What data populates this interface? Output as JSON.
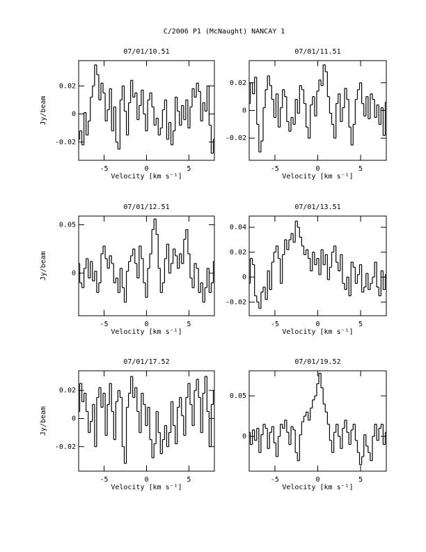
{
  "title": "C/2006 P1 (McNaught)   NANCAY     1",
  "chart_data": [
    {
      "type": "step",
      "title": "07/01/10.51",
      "xlabel": "Velocity [km s⁻¹]",
      "ylabel": "Jy/beam",
      "color": "#000000",
      "x": [
        -8,
        -7.75,
        -7.5,
        -7.25,
        -7,
        -6.75,
        -6.5,
        -6.25,
        -6,
        -5.75,
        -5.5,
        -5.25,
        -5,
        -4.75,
        -4.5,
        -4.25,
        -4,
        -3.75,
        -3.5,
        -3.25,
        -3,
        -2.75,
        -2.5,
        -2.25,
        -2,
        -1.75,
        -1.5,
        -1.25,
        -1,
        -0.75,
        -0.5,
        -0.25,
        0,
        0.25,
        0.5,
        0.75,
        1,
        1.25,
        1.5,
        1.75,
        2,
        2.25,
        2.5,
        2.75,
        3,
        3.25,
        3.5,
        3.75,
        4,
        4.25,
        4.5,
        4.75,
        5,
        5.25,
        5.5,
        5.75,
        6,
        6.25,
        6.5,
        6.75,
        7,
        7.25,
        7.5,
        7.75,
        8
      ],
      "values": [
        -0.018,
        -0.012,
        -0.022,
        0.001,
        -0.015,
        -0.005,
        0.012,
        0.02,
        0.035,
        0.028,
        0.01,
        0.022,
        0.015,
        -0.005,
        0.003,
        0.018,
        -0.012,
        0.005,
        -0.02,
        -0.025,
        0.01,
        0.02,
        0.002,
        -0.015,
        0.008,
        0.024,
        0.012,
        0.015,
        -0.004,
        0.006,
        0.017,
        0.0,
        -0.012,
        0.01,
        0.015,
        0.005,
        -0.008,
        -0.003,
        -0.015,
        -0.01,
        0.003,
        0.01,
        -0.018,
        -0.006,
        -0.022,
        -0.012,
        0.012,
        0.002,
        -0.008,
        0.006,
        -0.004,
        0.01,
        -0.01,
        0.005,
        0.018,
        0.012,
        0.022,
        0.016,
        -0.005,
        0.008,
        0.002,
        0.02,
        -0.008,
        -0.028,
        -0.018
      ],
      "xlim": [
        -8,
        8
      ],
      "xticks": [
        -5,
        0,
        5
      ],
      "ylim": [
        -0.033,
        0.038
      ],
      "yticks": [
        -0.02,
        0,
        0.02
      ]
    },
    {
      "type": "step",
      "title": "07/01/11.51",
      "xlabel": "Velocity [km s⁻¹]",
      "color": "#000000",
      "x": [
        -8,
        -7.75,
        -7.5,
        -7.25,
        -7,
        -6.75,
        -6.5,
        -6.25,
        -6,
        -5.75,
        -5.5,
        -5.25,
        -5,
        -4.75,
        -4.5,
        -4.25,
        -4,
        -3.75,
        -3.5,
        -3.25,
        -3,
        -2.75,
        -2.5,
        -2.25,
        -2,
        -1.75,
        -1.5,
        -1.25,
        -1,
        -0.75,
        -0.5,
        -0.25,
        0,
        0.25,
        0.5,
        0.75,
        1,
        1.25,
        1.5,
        1.75,
        2,
        2.25,
        2.5,
        2.75,
        3,
        3.25,
        3.5,
        3.75,
        4,
        4.25,
        4.5,
        4.75,
        5,
        5.25,
        5.5,
        5.75,
        6,
        6.25,
        6.5,
        6.75,
        7,
        7.25,
        7.5,
        7.75,
        8
      ],
      "values": [
        0.005,
        0.02,
        0.012,
        0.024,
        -0.01,
        -0.03,
        -0.022,
        0.002,
        0.015,
        0.025,
        0.018,
        0.008,
        -0.005,
        0.012,
        -0.012,
        0.002,
        0.015,
        0.01,
        -0.008,
        -0.015,
        -0.005,
        -0.01,
        0.008,
        -0.002,
        0.018,
        0.015,
        0.005,
        -0.012,
        -0.02,
        0.004,
        0.01,
        -0.004,
        0.014,
        0.022,
        0.018,
        0.033,
        0.028,
        0.01,
        -0.002,
        -0.01,
        -0.02,
        0.005,
        0.012,
        -0.008,
        0.002,
        0.016,
        0.008,
        -0.012,
        -0.025,
        -0.01,
        0.008,
        0.015,
        0.02,
        0.005,
        -0.004,
        0.01,
        -0.006,
        0.012,
        0.008,
        -0.005,
        0.004,
        -0.01,
        0.002,
        -0.018,
        0.006
      ],
      "xlim": [
        -8,
        8
      ],
      "xticks": [
        -5,
        0,
        5
      ],
      "ylim": [
        -0.036,
        0.036
      ],
      "yticks": [
        -0.02,
        0,
        0.02
      ]
    },
    {
      "type": "step",
      "title": "07/01/12.51",
      "xlabel": "Velocity [km s⁻¹]",
      "ylabel": "Jy/beam",
      "color": "#000000",
      "x": [
        -8,
        -7.75,
        -7.5,
        -7.25,
        -7,
        -6.75,
        -6.5,
        -6.25,
        -6,
        -5.75,
        -5.5,
        -5.25,
        -5,
        -4.75,
        -4.5,
        -4.25,
        -4,
        -3.75,
        -3.5,
        -3.25,
        -3,
        -2.75,
        -2.5,
        -2.25,
        -2,
        -1.75,
        -1.5,
        -1.25,
        -1,
        -0.75,
        -0.5,
        -0.25,
        0,
        0.25,
        0.5,
        0.75,
        1,
        1.25,
        1.5,
        1.75,
        2,
        2.25,
        2.5,
        2.75,
        3,
        3.25,
        3.5,
        3.75,
        4,
        4.25,
        4.5,
        4.75,
        5,
        5.25,
        5.5,
        5.75,
        6,
        6.25,
        6.5,
        6.75,
        7,
        7.25,
        7.5,
        7.75,
        8
      ],
      "values": [
        0.01,
        -0.01,
        -0.015,
        0.005,
        0.015,
        -0.005,
        0.012,
        -0.008,
        0.002,
        -0.02,
        -0.01,
        0.02,
        0.028,
        0.015,
        0.005,
        0.018,
        0.01,
        -0.01,
        -0.005,
        -0.02,
        0.005,
        -0.015,
        -0.03,
        0.002,
        0.012,
        0.018,
        0.025,
        0.01,
        -0.005,
        0.028,
        0.015,
        -0.01,
        -0.025,
        0.005,
        0.02,
        0.045,
        0.056,
        0.04,
        0.005,
        -0.02,
        -0.01,
        0.015,
        0.03,
        0.0,
        0.01,
        0.025,
        0.018,
        0.005,
        0.02,
        0.01,
        0.035,
        0.045,
        0.02,
        -0.005,
        -0.015,
        0.01,
        0.005,
        -0.02,
        -0.01,
        -0.03,
        -0.015,
        0.005,
        -0.02,
        -0.01,
        0.012
      ],
      "xlim": [
        -8,
        8
      ],
      "xticks": [
        -5,
        0,
        5
      ],
      "ylim": [
        -0.044,
        0.059
      ],
      "yticks": [
        0,
        0.05
      ]
    },
    {
      "type": "step",
      "title": "07/01/13.51",
      "xlabel": "Velocity [km s⁻¹]",
      "color": "#000000",
      "x": [
        -8,
        -7.75,
        -7.5,
        -7.25,
        -7,
        -6.75,
        -6.5,
        -6.25,
        -6,
        -5.75,
        -5.5,
        -5.25,
        -5,
        -4.75,
        -4.5,
        -4.25,
        -4,
        -3.75,
        -3.5,
        -3.25,
        -3,
        -2.75,
        -2.5,
        -2.25,
        -2,
        -1.75,
        -1.5,
        -1.25,
        -1,
        -0.75,
        -0.5,
        -0.25,
        0,
        0.25,
        0.5,
        0.75,
        1,
        1.25,
        1.5,
        1.75,
        2,
        2.25,
        2.5,
        2.75,
        3,
        3.25,
        3.5,
        3.75,
        4,
        4.25,
        4.5,
        4.75,
        5,
        5.25,
        5.5,
        5.75,
        6,
        6.25,
        6.5,
        6.75,
        7,
        7.25,
        7.5,
        7.75,
        8
      ],
      "values": [
        -0.005,
        0.015,
        0.01,
        -0.015,
        -0.02,
        -0.025,
        -0.012,
        -0.008,
        -0.018,
        0.005,
        -0.01,
        0.012,
        0.02,
        0.025,
        0.015,
        -0.005,
        0.018,
        0.03,
        0.022,
        0.03,
        0.035,
        0.028,
        0.045,
        0.04,
        0.032,
        0.025,
        0.018,
        0.022,
        0.015,
        0.005,
        0.02,
        0.01,
        0.015,
        0.002,
        0.022,
        0.01,
        0.018,
        -0.002,
        0.008,
        0.02,
        0.025,
        0.012,
        0.005,
        0.018,
        -0.005,
        -0.01,
        0.0,
        -0.015,
        0.012,
        0.008,
        -0.005,
        0.002,
        0.01,
        -0.012,
        -0.008,
        0.003,
        -0.01,
        -0.005,
        0.0,
        0.012,
        -0.008,
        -0.015,
        0.005,
        -0.01,
        0.002
      ],
      "xlim": [
        -8,
        8
      ],
      "xticks": [
        -5,
        0,
        5
      ],
      "ylim": [
        -0.031,
        0.049
      ],
      "yticks": [
        -0.02,
        0,
        0.02,
        0.04
      ]
    },
    {
      "type": "step",
      "title": "07/01/17.52",
      "xlabel": "Velocity [km s⁻¹]",
      "ylabel": "Jy/beam",
      "color": "#000000",
      "x": [
        -8,
        -7.75,
        -7.5,
        -7.25,
        -7,
        -6.75,
        -6.5,
        -6.25,
        -6,
        -5.75,
        -5.5,
        -5.25,
        -5,
        -4.75,
        -4.5,
        -4.25,
        -4,
        -3.75,
        -3.5,
        -3.25,
        -3,
        -2.75,
        -2.5,
        -2.25,
        -2,
        -1.75,
        -1.5,
        -1.25,
        -1,
        -0.75,
        -0.5,
        -0.25,
        0,
        0.25,
        0.5,
        0.75,
        1,
        1.25,
        1.5,
        1.75,
        2,
        2.25,
        2.5,
        2.75,
        3,
        3.25,
        3.5,
        3.75,
        4,
        4.25,
        4.5,
        4.75,
        5,
        5.25,
        5.5,
        5.75,
        6,
        6.25,
        6.5,
        6.75,
        7,
        7.25,
        7.5,
        7.75,
        8
      ],
      "values": [
        0.005,
        0.025,
        0.012,
        0.018,
        0.005,
        -0.01,
        -0.002,
        0.01,
        -0.02,
        0.015,
        0.022,
        0.008,
        0.018,
        -0.012,
        0.01,
        0.025,
        0.005,
        -0.015,
        0.012,
        0.02,
        0.015,
        -0.02,
        -0.032,
        0.008,
        0.018,
        0.03,
        0.015,
        0.022,
        0.005,
        -0.01,
        0.018,
        0.01,
        -0.005,
        0.008,
        -0.015,
        -0.028,
        -0.018,
        0.005,
        -0.01,
        -0.025,
        -0.015,
        -0.005,
        -0.02,
        -0.01,
        0.012,
        -0.005,
        -0.018,
        0.008,
        0.015,
        0.002,
        -0.012,
        0.015,
        0.025,
        0.01,
        -0.005,
        0.02,
        0.028,
        0.015,
        -0.01,
        0.018,
        0.03,
        0.005,
        -0.02,
        0.01,
        0.02
      ],
      "xlim": [
        -8,
        8
      ],
      "xticks": [
        -5,
        0,
        5
      ],
      "ylim": [
        -0.0375,
        0.034
      ],
      "yticks": [
        -0.02,
        0,
        0.02
      ]
    },
    {
      "type": "step",
      "title": "07/01/19.52",
      "xlabel": "Velocity [km s⁻¹]",
      "color": "#000000",
      "x": [
        -8,
        -7.75,
        -7.5,
        -7.25,
        -7,
        -6.75,
        -6.5,
        -6.25,
        -6,
        -5.75,
        -5.5,
        -5.25,
        -5,
        -4.75,
        -4.5,
        -4.25,
        -4,
        -3.75,
        -3.5,
        -3.25,
        -3,
        -2.75,
        -2.5,
        -2.25,
        -2,
        -1.75,
        -1.5,
        -1.25,
        -1,
        -0.75,
        -0.5,
        -0.25,
        0,
        0.25,
        0.5,
        0.75,
        1,
        1.25,
        1.5,
        1.75,
        2,
        2.25,
        2.5,
        2.75,
        3,
        3.25,
        3.5,
        3.75,
        4,
        4.25,
        4.5,
        4.75,
        5,
        5.25,
        5.5,
        5.75,
        6,
        6.25,
        6.5,
        6.75,
        7,
        7.25,
        7.5,
        7.75,
        8
      ],
      "values": [
        0.005,
        -0.01,
        0.008,
        -0.005,
        0.01,
        -0.02,
        0.002,
        0.015,
        0.01,
        -0.015,
        0.005,
        0.012,
        -0.008,
        -0.025,
        0.0,
        0.015,
        0.01,
        0.02,
        0.005,
        -0.01,
        0.012,
        0.008,
        -0.02,
        -0.03,
        0.002,
        0.018,
        0.025,
        0.03,
        0.02,
        0.035,
        0.045,
        0.05,
        0.065,
        0.078,
        0.06,
        0.04,
        0.03,
        0.015,
        -0.005,
        -0.02,
        0.005,
        0.015,
        0.0,
        -0.015,
        0.01,
        0.02,
        0.005,
        -0.01,
        0.008,
        0.015,
        -0.005,
        -0.02,
        -0.035,
        -0.025,
        0.002,
        -0.012,
        -0.02,
        -0.03,
        0.0,
        0.015,
        -0.005,
        0.01,
        0.015,
        -0.01,
        0.005
      ],
      "xlim": [
        -8,
        8
      ],
      "xticks": [
        -5,
        0,
        5
      ],
      "ylim": [
        -0.043,
        0.081
      ],
      "yticks": [
        0,
        0.05
      ]
    }
  ]
}
